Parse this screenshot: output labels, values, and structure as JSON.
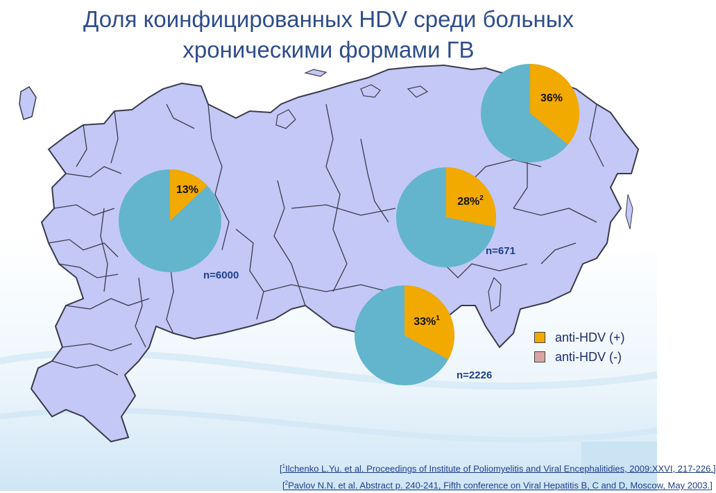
{
  "title": {
    "line1": "Доля коинфицированных HDV среди больных",
    "line2": "хроническими формами ГВ"
  },
  "colors": {
    "positive": "#f2a900",
    "negative": "#62b5cc",
    "map_fill": "#c4c8f6",
    "map_stroke": "#3a3a4a",
    "title": "#2e4d8c",
    "legend_negative_swatch": "#dca3a3"
  },
  "chart_data": {
    "type": "pie",
    "pies": [
      {
        "name": "pie-west",
        "label": "13%",
        "sup": "",
        "value": 13,
        "n_label": "n=6000"
      },
      {
        "name": "pie-siberia",
        "label": "28%",
        "sup": "2",
        "value": 28,
        "n_label": "n=671"
      },
      {
        "name": "pie-south",
        "label": "33%",
        "sup": "1",
        "value": 33,
        "n_label": "n=2226"
      },
      {
        "name": "pie-northeast",
        "label": "36%",
        "sup": "",
        "value": 36,
        "n_label": ""
      }
    ]
  },
  "legend": {
    "items": [
      {
        "label": "anti-HDV (+)"
      },
      {
        "label": "anti-HDV (-)"
      }
    ]
  },
  "references": {
    "ref1_sup": "1",
    "ref1_text": "Ilchenko L.Yu. et al. Proceedings of Institute of Poliomyelitis and Viral Encephalitidies, 2009:XXVI, 217-226.",
    "ref2_sup": "2",
    "ref2_text": "Pavlov N.N. et al. Abstract p. 240-241, Fifth conference on Viral Hepatitis B, C and D, Moscow, May 2003."
  }
}
